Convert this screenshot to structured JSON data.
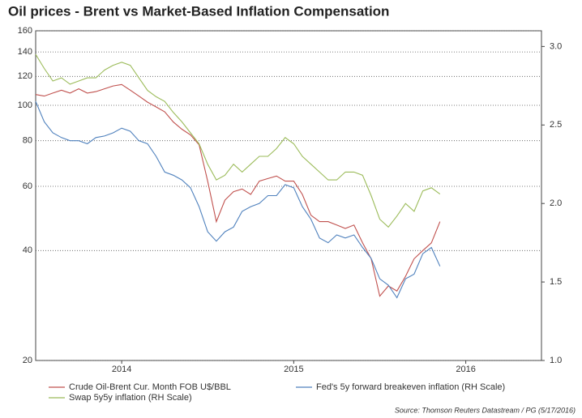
{
  "chart_data": {
    "type": "line",
    "title": "Oil prices - Brent vs Market-Based Inflation Compensation",
    "source": "Source: Thomson Reuters Datastream / PG (5/17/2016)",
    "x": [
      2014.0,
      2014.05,
      2014.1,
      2014.15,
      2014.2,
      2014.25,
      2014.3,
      2014.35,
      2014.4,
      2014.45,
      2014.5,
      2014.55,
      2014.6,
      2014.65,
      2014.7,
      2014.75,
      2014.8,
      2014.85,
      2014.9,
      2014.95,
      2015.0,
      2015.05,
      2015.1,
      2015.15,
      2015.2,
      2015.25,
      2015.3,
      2015.35,
      2015.4,
      2015.45,
      2015.5,
      2015.55,
      2015.6,
      2015.65,
      2015.7,
      2015.75,
      2015.8,
      2015.85,
      2015.9,
      2015.95,
      2016.0,
      2016.05,
      2016.1,
      2016.15,
      2016.2,
      2016.25,
      2016.3,
      2016.35
    ],
    "xlim": [
      2014,
      2016.94
    ],
    "xticks": [
      {
        "value": 2014.5,
        "label": "2014"
      },
      {
        "value": 2015.5,
        "label": "2015"
      },
      {
        "value": 2016.5,
        "label": "2016"
      }
    ],
    "yscale": "log",
    "ylim": [
      20,
      160
    ],
    "yticks": [
      20,
      40,
      60,
      80,
      100,
      120,
      140,
      160
    ],
    "y2lim": [
      1.0,
      3.1
    ],
    "y2ticks": [
      {
        "value": 1.0,
        "label": "1.0"
      },
      {
        "value": 1.5,
        "label": "1.5"
      },
      {
        "value": 2.0,
        "label": "2.0"
      },
      {
        "value": 2.5,
        "label": "2.5"
      },
      {
        "value": 3.0,
        "label": "3.0"
      }
    ],
    "grid": true,
    "series": [
      {
        "name": "Crude Oil-Brent Cur. Month FOB U$/BBL",
        "color": "#c0504d",
        "values": [
          107,
          106,
          108,
          110,
          108,
          111,
          108,
          109,
          111,
          113,
          114,
          110,
          106,
          102,
          99,
          96,
          90,
          86,
          83,
          78,
          62,
          48,
          55,
          58,
          59,
          57,
          62,
          63,
          64,
          62,
          62,
          57,
          50,
          48,
          48,
          47,
          46,
          47,
          42,
          38,
          30,
          32,
          31,
          34,
          38,
          40,
          42,
          48
        ]
      },
      {
        "name": "Fed's 5y forward breakeven inflation (RH Scale)",
        "color": "#4f81bd",
        "axis": "y2",
        "values": [
          2.65,
          2.52,
          2.45,
          2.42,
          2.4,
          2.4,
          2.38,
          2.42,
          2.43,
          2.45,
          2.48,
          2.46,
          2.4,
          2.38,
          2.3,
          2.2,
          2.18,
          2.15,
          2.1,
          1.98,
          1.82,
          1.76,
          1.82,
          1.85,
          1.95,
          1.98,
          2.0,
          2.05,
          2.05,
          2.12,
          2.1,
          1.98,
          1.9,
          1.78,
          1.75,
          1.8,
          1.78,
          1.8,
          1.72,
          1.65,
          1.52,
          1.48,
          1.4,
          1.52,
          1.55,
          1.68,
          1.72,
          1.6
        ]
      },
      {
        "name": "Swap 5y5y inflation (RH Scale)",
        "color": "#9bbb59",
        "axis": "y2",
        "values": [
          2.95,
          2.86,
          2.78,
          2.8,
          2.76,
          2.78,
          2.8,
          2.8,
          2.85,
          2.88,
          2.9,
          2.88,
          2.8,
          2.72,
          2.68,
          2.65,
          2.58,
          2.52,
          2.45,
          2.38,
          2.25,
          2.15,
          2.18,
          2.25,
          2.2,
          2.25,
          2.3,
          2.3,
          2.35,
          2.42,
          2.38,
          2.3,
          2.25,
          2.2,
          2.15,
          2.15,
          2.2,
          2.2,
          2.18,
          2.05,
          1.9,
          1.85,
          1.92,
          2.0,
          1.95,
          2.08,
          2.1,
          2.06
        ]
      }
    ]
  }
}
